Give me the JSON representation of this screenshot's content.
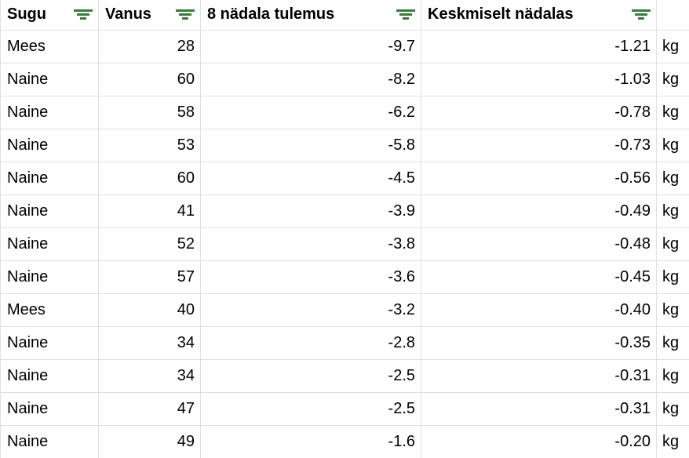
{
  "colors": {
    "filter_icon_green": "#3a7b3d",
    "gridline": "#e0e0e0",
    "text": "#000000",
    "background": "#ffffff"
  },
  "table": {
    "columns": [
      {
        "label": "Sugu",
        "icon": "filter-icon"
      },
      {
        "label": "Vanus",
        "icon": "filter-icon"
      },
      {
        "label": "8 nädala tulemus",
        "icon": "filter-icon"
      },
      {
        "label": "Keskmiselt nädalas",
        "icon": "filter-icon"
      },
      {
        "label": "",
        "icon": "filter-icon"
      }
    ],
    "rows": [
      {
        "sugu": "Mees",
        "vanus": "28",
        "tulemus": "-9.7",
        "keskmiselt": "-1.21",
        "unit": "kg"
      },
      {
        "sugu": "Naine",
        "vanus": "60",
        "tulemus": "-8.2",
        "keskmiselt": "-1.03",
        "unit": "kg"
      },
      {
        "sugu": "Naine",
        "vanus": "58",
        "tulemus": "-6.2",
        "keskmiselt": "-0.78",
        "unit": "kg"
      },
      {
        "sugu": "Naine",
        "vanus": "53",
        "tulemus": "-5.8",
        "keskmiselt": "-0.73",
        "unit": "kg"
      },
      {
        "sugu": "Naine",
        "vanus": "60",
        "tulemus": "-4.5",
        "keskmiselt": "-0.56",
        "unit": "kg"
      },
      {
        "sugu": "Naine",
        "vanus": "41",
        "tulemus": "-3.9",
        "keskmiselt": "-0.49",
        "unit": "kg"
      },
      {
        "sugu": "Naine",
        "vanus": "52",
        "tulemus": "-3.8",
        "keskmiselt": "-0.48",
        "unit": "kg"
      },
      {
        "sugu": "Naine",
        "vanus": "57",
        "tulemus": "-3.6",
        "keskmiselt": "-0.45",
        "unit": "kg"
      },
      {
        "sugu": "Mees",
        "vanus": "40",
        "tulemus": "-3.2",
        "keskmiselt": "-0.40",
        "unit": "kg"
      },
      {
        "sugu": "Naine",
        "vanus": "34",
        "tulemus": "-2.8",
        "keskmiselt": "-0.35",
        "unit": "kg"
      },
      {
        "sugu": "Naine",
        "vanus": "34",
        "tulemus": "-2.5",
        "keskmiselt": "-0.31",
        "unit": "kg"
      },
      {
        "sugu": "Naine",
        "vanus": "47",
        "tulemus": "-2.5",
        "keskmiselt": "-0.31",
        "unit": "kg"
      },
      {
        "sugu": "Naine",
        "vanus": "49",
        "tulemus": "-1.6",
        "keskmiselt": "-0.20",
        "unit": "kg"
      }
    ]
  }
}
